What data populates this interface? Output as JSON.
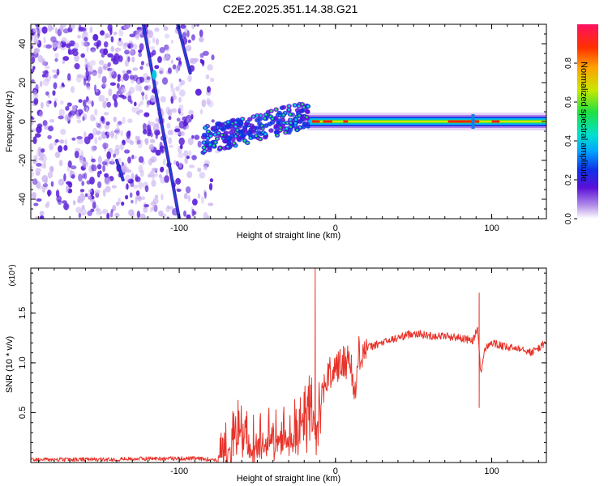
{
  "figure_title": "C2E2.2025.351.14.38.G21",
  "colors": {
    "snr_line": "#e8332a",
    "frame": "#000000",
    "scatter_primary": "#5a1ed8",
    "scatter_light": "#c8b0f0"
  },
  "chart_data": [
    {
      "type": "heatmap",
      "title": "C2E2.2025.351.14.38.G21",
      "xlabel": "Height of straight line (km)",
      "ylabel": "Frequency (Hz)",
      "xlim": [
        -195,
        135
      ],
      "ylim": [
        -50,
        50
      ],
      "xticks": [
        -100,
        0,
        100
      ],
      "yticks": [
        -40,
        -20,
        0,
        20,
        40
      ],
      "colorbar": {
        "label": "Normalized spectral amplitude",
        "range": [
          0,
          1
        ],
        "ticks": [
          0.0,
          0.2,
          0.4,
          0.6,
          0.8
        ],
        "tick_labels": [
          "0.0",
          "0.2",
          "0.4",
          "0.6",
          "0.8"
        ],
        "colormap": [
          "#ffffff",
          "#b08ce8",
          "#5a10d8",
          "#1030e8",
          "#00a8ff",
          "#00e0d0",
          "#20e040",
          "#c8e800",
          "#ffa000",
          "#ff3000",
          "#ff1060"
        ]
      },
      "features": {
        "noise_region_x": [
          -195,
          -80
        ],
        "signal_band": {
          "x_start": -85,
          "x_end": 135,
          "center_freq": 0
        },
        "diagonal_streaks": [
          {
            "x_start": -123,
            "y_start": 50,
            "x_end": -100,
            "y_end": -50
          },
          {
            "x_start": -101,
            "y_start": 50,
            "x_end": -93,
            "y_end": 25
          },
          {
            "x_start": -140,
            "y_start": -20,
            "x_end": -136,
            "y_end": -30
          }
        ]
      }
    },
    {
      "type": "line",
      "xlabel": "Height of straight line (km)",
      "ylabel": "SNR (10 * v/v)",
      "y_exponent": "(x10⁴)",
      "xlim": [
        -195,
        135
      ],
      "ylim": [
        0,
        1.95
      ],
      "xticks": [
        -100,
        0,
        100
      ],
      "yticks": [
        0.5,
        1.0,
        1.5
      ],
      "ytick_labels": [
        "0.5",
        "1.0",
        "1.5"
      ],
      "series": [
        {
          "name": "SNR",
          "x": [
            -195,
            -150,
            -120,
            -90,
            -76,
            -70,
            -62,
            -55,
            -45,
            -35,
            -25,
            -18,
            -14,
            -10,
            -5,
            0,
            5,
            10,
            12,
            15,
            20,
            30,
            40,
            50,
            60,
            70,
            80,
            88,
            91,
            93,
            96,
            100,
            110,
            120,
            125,
            130,
            135
          ],
          "values": [
            0.02,
            0.02,
            0.03,
            0.03,
            0.02,
            0.1,
            0.35,
            0.25,
            0.3,
            0.35,
            0.45,
            0.55,
            0.6,
            0.7,
            0.85,
            0.95,
            1.0,
            1.05,
            0.6,
            1.1,
            1.15,
            1.2,
            1.25,
            1.3,
            1.27,
            1.27,
            1.25,
            1.22,
            1.35,
            0.9,
            1.15,
            1.2,
            1.15,
            1.15,
            1.1,
            1.15,
            1.2
          ],
          "annotations": [
            {
              "x": -13,
              "y": 1.95,
              "note": "peak"
            },
            {
              "x": 92,
              "y": 1.7,
              "note": "spike"
            },
            {
              "x": 92,
              "y": 0.55,
              "note": "dip"
            }
          ]
        }
      ]
    }
  ]
}
